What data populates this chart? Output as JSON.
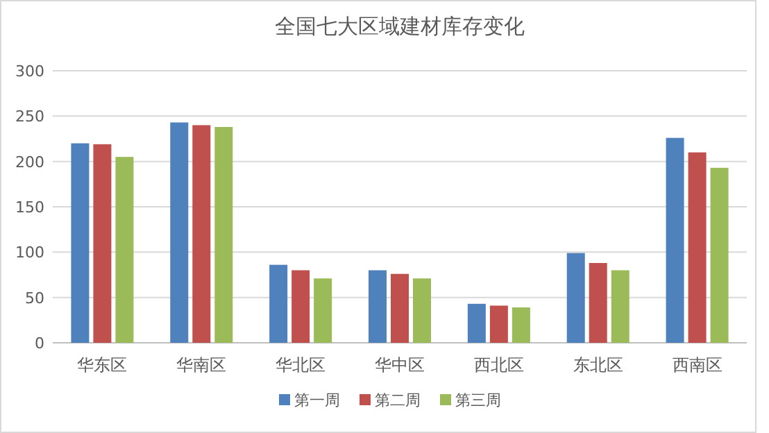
{
  "chart_data": {
    "type": "bar",
    "title": "全国七大区域建材库存变化",
    "categories": [
      "华东区",
      "华南区",
      "华北区",
      "华中区",
      "西北区",
      "东北区",
      "西南区"
    ],
    "series": [
      {
        "name": "第一周",
        "color": "#4f81bd",
        "values": [
          220,
          243,
          86,
          80,
          43,
          99,
          226
        ]
      },
      {
        "name": "第二周",
        "color": "#c0504d",
        "values": [
          219,
          240,
          80,
          76,
          41,
          88,
          210
        ]
      },
      {
        "name": "第三周",
        "color": "#9bbb59",
        "values": [
          205,
          238,
          71,
          71,
          39,
          80,
          193
        ]
      }
    ],
    "ylim": [
      0,
      300
    ],
    "yticks": [
      0,
      50,
      100,
      150,
      200,
      250,
      300
    ],
    "grid": "y",
    "legend": "bottom"
  }
}
